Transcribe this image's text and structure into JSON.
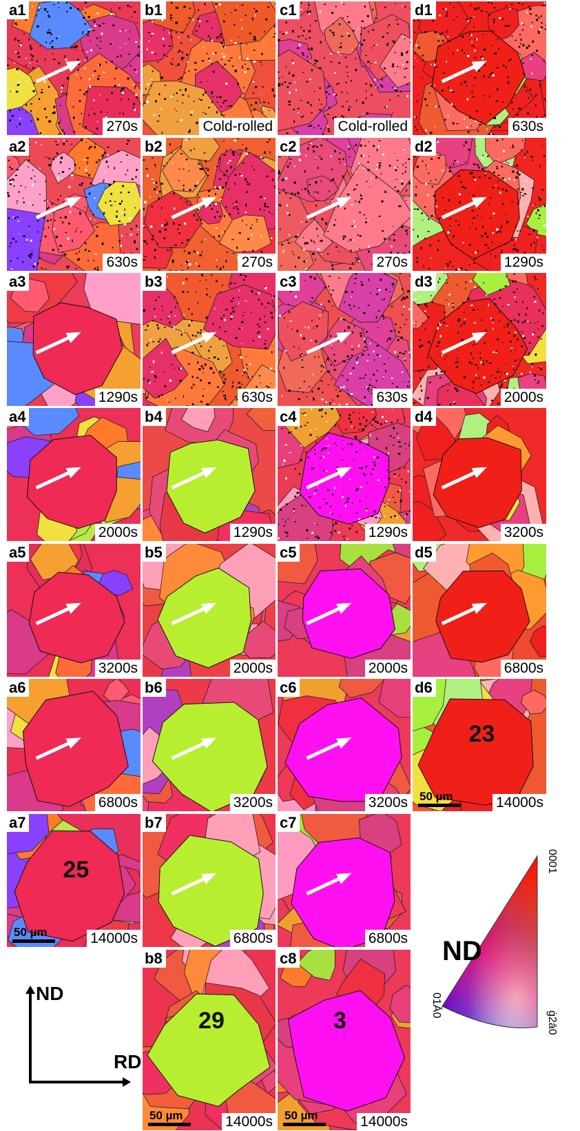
{
  "panels": [
    {
      "id": "a1",
      "time": "270s",
      "col": 0,
      "row": 0,
      "base": "#e83a58",
      "scheme": "mixed",
      "dots": true
    },
    {
      "id": "a2",
      "time": "630s",
      "col": 0,
      "row": 1,
      "base": "#ee4a55",
      "scheme": "mixed",
      "dots": true
    },
    {
      "id": "a3",
      "time": "1290s",
      "col": 0,
      "row": 2,
      "base": "#ec3d5a",
      "scheme": "mixed",
      "dots": false
    },
    {
      "id": "a4",
      "time": "2000s",
      "col": 0,
      "row": 3,
      "base": "#ec3057",
      "scheme": "mixed",
      "dots": false
    },
    {
      "id": "a5",
      "time": "3200s",
      "col": 0,
      "row": 4,
      "base": "#ec3058",
      "scheme": "mixed",
      "dots": false
    },
    {
      "id": "a6",
      "time": "6800s",
      "col": 0,
      "row": 5,
      "base": "#ec2f55",
      "scheme": "mixed",
      "dots": false
    },
    {
      "id": "a7",
      "time": "14000s",
      "col": 0,
      "row": 6,
      "base": "#e8305a",
      "scheme": "mixed",
      "dots": false,
      "grain": "25",
      "scalebar": "50 µm"
    },
    {
      "id": "b1",
      "time": "Cold-rolled",
      "col": 1,
      "row": 0,
      "base": "#f0503c",
      "scheme": "red",
      "dots": true
    },
    {
      "id": "b2",
      "time": "270s",
      "col": 1,
      "row": 1,
      "base": "#f06030",
      "scheme": "red",
      "dots": true
    },
    {
      "id": "b3",
      "time": "630s",
      "col": 1,
      "row": 2,
      "base": "#f05a2e",
      "scheme": "red",
      "dots": true
    },
    {
      "id": "b4",
      "time": "1290s",
      "col": 1,
      "row": 3,
      "base": "#ec4a48",
      "scheme": "green",
      "dots": false
    },
    {
      "id": "b5",
      "time": "2000s",
      "col": 1,
      "row": 4,
      "base": "#ec4046",
      "scheme": "green",
      "dots": false
    },
    {
      "id": "b6",
      "time": "3200s",
      "col": 1,
      "row": 5,
      "base": "#ec3a48",
      "scheme": "green",
      "dots": false
    },
    {
      "id": "b7",
      "time": "6800s",
      "col": 1,
      "row": 6,
      "base": "#ec3848",
      "scheme": "green",
      "dots": false
    },
    {
      "id": "b8",
      "time": "14000s",
      "col": 1,
      "row": 7,
      "base": "#ec3450",
      "scheme": "green",
      "dots": false,
      "grain": "29",
      "scalebar": "50 µm"
    },
    {
      "id": "c1",
      "time": "Cold-rolled",
      "col": 2,
      "row": 0,
      "base": "#ee4e62",
      "scheme": "pink",
      "dots": true
    },
    {
      "id": "c2",
      "time": "270s",
      "col": 2,
      "row": 1,
      "base": "#ee5a62",
      "scheme": "pink",
      "dots": true
    },
    {
      "id": "c3",
      "time": "630s",
      "col": 2,
      "row": 2,
      "base": "#ee5050",
      "scheme": "pink",
      "dots": true
    },
    {
      "id": "c4",
      "time": "1290s",
      "col": 2,
      "row": 3,
      "base": "#ec3a55",
      "scheme": "magenta",
      "dots": true
    },
    {
      "id": "c5",
      "time": "2000s",
      "col": 2,
      "row": 4,
      "base": "#ec3a58",
      "scheme": "magenta",
      "dots": false
    },
    {
      "id": "c6",
      "time": "3200s",
      "col": 2,
      "row": 5,
      "base": "#ec3a5a",
      "scheme": "magenta",
      "dots": false
    },
    {
      "id": "c7",
      "time": "6800s",
      "col": 2,
      "row": 6,
      "base": "#ec3a58",
      "scheme": "magenta",
      "dots": false
    },
    {
      "id": "c8",
      "time": "14000s",
      "col": 2,
      "row": 7,
      "base": "#ec3a58",
      "scheme": "magenta",
      "dots": false,
      "grain": "3",
      "scalebar": "50 µm"
    },
    {
      "id": "d1",
      "time": "630s",
      "col": 3,
      "row": 0,
      "base": "#f0201c",
      "scheme": "bigred",
      "dots": true
    },
    {
      "id": "d2",
      "time": "1290s",
      "col": 3,
      "row": 1,
      "base": "#f02420",
      "scheme": "bigred",
      "dots": true
    },
    {
      "id": "d3",
      "time": "2000s",
      "col": 3,
      "row": 2,
      "base": "#f02826",
      "scheme": "bigred",
      "dots": true
    },
    {
      "id": "d4",
      "time": "3200s",
      "col": 3,
      "row": 3,
      "base": "#f02a28",
      "scheme": "bigred",
      "dots": false
    },
    {
      "id": "d5",
      "time": "6800s",
      "col": 3,
      "row": 4,
      "base": "#f04a30",
      "scheme": "bigred",
      "dots": false
    },
    {
      "id": "d6",
      "time": "14000s",
      "col": 3,
      "row": 5,
      "base": "#f05a30",
      "scheme": "bigred",
      "dots": false,
      "grain": "23",
      "scalebar": "50 µm"
    }
  ],
  "axes": {
    "vertical": "ND",
    "horizontal": "RD"
  },
  "ipf_legend": {
    "title": "ND",
    "corner_top": "0001",
    "corner_left": "01Ā0",
    "corner_right": "ġ2ā0"
  },
  "colors": {
    "red": "#ff0000",
    "green": "#3ddc2e",
    "blue": "#1a1aff",
    "yellow": "#f0e000",
    "magenta": "#ff10ff"
  }
}
